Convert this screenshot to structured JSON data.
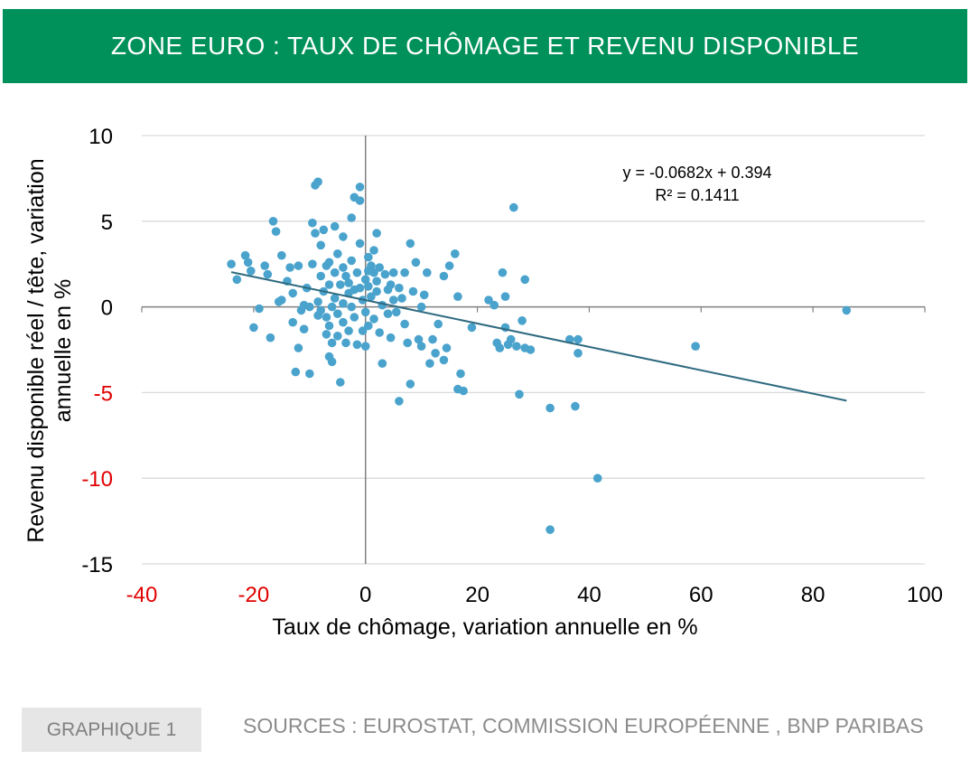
{
  "header": {
    "title": "ZONE EURO : TAUX DE CHÔMAGE ET REVENU DISPONIBLE"
  },
  "footer": {
    "badge": "GRAPHIQUE 1",
    "sources": "SOURCES : EUROSTAT, COMMISSION EUROPÉENNE , BNP PARIBAS"
  },
  "colors": {
    "banner": "#00915a",
    "points": "#4aa3cc",
    "trendline": "#2e6a80",
    "negative_tick": "#e00000",
    "grid": "#d9d9d9",
    "axis": "#808080"
  },
  "chart_data": {
    "type": "scatter",
    "title": "",
    "xlabel": "Taux de chômage, variation annuelle en %",
    "ylabel": "Revenu disponible réel / tête, variation annuelle en %",
    "xlim": [
      -40,
      100
    ],
    "ylim": [
      -15,
      10
    ],
    "x_ticks": [
      "-40",
      "-20",
      "0",
      "20",
      "40",
      "60",
      "80",
      "100"
    ],
    "y_ticks": [
      "10",
      "5",
      "0",
      "-5",
      "-10",
      "-15"
    ],
    "grid": "horizontal",
    "legend": "none",
    "trendline": {
      "equation": "y = -0.0682x + 0.394",
      "r2": "R² = 0.1411",
      "slope": -0.0682,
      "intercept": 0.394,
      "x_range": [
        -24,
        86
      ]
    },
    "points": [
      [
        -24,
        2.5
      ],
      [
        -23,
        1.6
      ],
      [
        -21.5,
        3.0
      ],
      [
        -21,
        2.6
      ],
      [
        -20.5,
        2.1
      ],
      [
        -20,
        -1.2
      ],
      [
        -19,
        -0.1
      ],
      [
        -18,
        2.4
      ],
      [
        -17.5,
        1.9
      ],
      [
        -17,
        -1.8
      ],
      [
        -16.5,
        5.0
      ],
      [
        -16,
        4.4
      ],
      [
        -15.5,
        0.3
      ],
      [
        -15,
        3.0
      ],
      [
        -15,
        0.4
      ],
      [
        -14,
        1.5
      ],
      [
        -13.5,
        2.3
      ],
      [
        -13,
        0.8
      ],
      [
        -13,
        -0.9
      ],
      [
        -12.5,
        -3.8
      ],
      [
        -12,
        2.4
      ],
      [
        -12,
        -2.4
      ],
      [
        -11.5,
        -0.2
      ],
      [
        -11,
        0.1
      ],
      [
        -11,
        -1.3
      ],
      [
        -10.5,
        1.1
      ],
      [
        -10,
        0.0
      ],
      [
        -10,
        -3.9
      ],
      [
        -9.5,
        4.9
      ],
      [
        -9.5,
        2.5
      ],
      [
        -9,
        4.3
      ],
      [
        -9,
        7.1
      ],
      [
        -8.5,
        7.3
      ],
      [
        -8.5,
        0.3
      ],
      [
        -8.5,
        -0.5
      ],
      [
        -8,
        3.6
      ],
      [
        -8,
        1.8
      ],
      [
        -8,
        -0.2
      ],
      [
        -7.5,
        4.5
      ],
      [
        -7.5,
        0.9
      ],
      [
        -7,
        2.4
      ],
      [
        -7,
        -0.6
      ],
      [
        -7,
        -1.6
      ],
      [
        -6.5,
        2.6
      ],
      [
        -6.5,
        1.3
      ],
      [
        -6.5,
        -1.1
      ],
      [
        -6.5,
        -2.9
      ],
      [
        -6,
        0.0
      ],
      [
        -6,
        -2.1
      ],
      [
        -6,
        -3.2
      ],
      [
        -5.5,
        4.7
      ],
      [
        -5.5,
        2.0
      ],
      [
        -5.5,
        0.5
      ],
      [
        -5,
        -0.4
      ],
      [
        -5,
        -1.7
      ],
      [
        -5,
        3.1
      ],
      [
        -4.5,
        1.3
      ],
      [
        -4.5,
        -4.4
      ],
      [
        -4,
        4.1
      ],
      [
        -4,
        2.3
      ],
      [
        -4,
        0.2
      ],
      [
        -4,
        -0.9
      ],
      [
        -3.5,
        1.8
      ],
      [
        -3.5,
        -2.1
      ],
      [
        -3,
        0.8
      ],
      [
        -3,
        1.4
      ],
      [
        -3,
        -1.4
      ],
      [
        -2.5,
        5.2
      ],
      [
        -2.5,
        2.7
      ],
      [
        -2.5,
        0.0
      ],
      [
        -2,
        6.4
      ],
      [
        -2,
        1.0
      ],
      [
        -2,
        -0.6
      ],
      [
        -1.5,
        -2.2
      ],
      [
        -1.5,
        2.0
      ],
      [
        -1,
        6.2
      ],
      [
        -1,
        7.0
      ],
      [
        -1,
        3.7
      ],
      [
        -1,
        1.1
      ],
      [
        -0.5,
        0.4
      ],
      [
        -0.5,
        -1.4
      ],
      [
        0,
        1.6
      ],
      [
        0,
        -0.3
      ],
      [
        0,
        -2.3
      ],
      [
        0.5,
        2.9
      ],
      [
        0.5,
        2.1
      ],
      [
        0.5,
        1.2
      ],
      [
        0.5,
        -1.1
      ],
      [
        1,
        2.4
      ],
      [
        1,
        0.6
      ],
      [
        1.5,
        3.3
      ],
      [
        1.5,
        2.0
      ],
      [
        1.5,
        -0.7
      ],
      [
        2,
        4.3
      ],
      [
        2,
        1.5
      ],
      [
        2,
        0.9
      ],
      [
        2.5,
        -1.5
      ],
      [
        2.5,
        2.3
      ],
      [
        3,
        -3.3
      ],
      [
        3,
        0.1
      ],
      [
        3.5,
        1.9
      ],
      [
        4,
        1.0
      ],
      [
        4,
        -0.4
      ],
      [
        4.5,
        1.3
      ],
      [
        4.5,
        -1.8
      ],
      [
        5,
        0.4
      ],
      [
        5,
        2.0
      ],
      [
        5.5,
        -0.3
      ],
      [
        6,
        1.1
      ],
      [
        6,
        -5.5
      ],
      [
        6.5,
        0.5
      ],
      [
        7,
        2.0
      ],
      [
        7,
        -1.0
      ],
      [
        7.5,
        -2.1
      ],
      [
        8,
        3.7
      ],
      [
        8,
        -4.5
      ],
      [
        8.5,
        0.9
      ],
      [
        9,
        2.6
      ],
      [
        9.5,
        -1.9
      ],
      [
        10,
        -2.3
      ],
      [
        10,
        0.0
      ],
      [
        10.5,
        0.7
      ],
      [
        11,
        2.0
      ],
      [
        11.5,
        -3.3
      ],
      [
        12,
        -1.9
      ],
      [
        12.5,
        -2.7
      ],
      [
        13,
        -1.0
      ],
      [
        14,
        1.8
      ],
      [
        14,
        -3.1
      ],
      [
        14.5,
        -2.4
      ],
      [
        15,
        2.4
      ],
      [
        16,
        3.1
      ],
      [
        16.5,
        0.6
      ],
      [
        16.5,
        -4.8
      ],
      [
        17,
        -3.9
      ],
      [
        17.5,
        -4.9
      ],
      [
        19,
        -1.2
      ],
      [
        22,
        0.4
      ],
      [
        23,
        0.1
      ],
      [
        23.5,
        -2.1
      ],
      [
        24,
        -2.4
      ],
      [
        24.5,
        2.0
      ],
      [
        25,
        0.6
      ],
      [
        25,
        -1.2
      ],
      [
        25.5,
        -2.2
      ],
      [
        26,
        -1.9
      ],
      [
        26.5,
        5.8
      ],
      [
        27,
        -2.3
      ],
      [
        27.5,
        -5.1
      ],
      [
        28,
        -0.8
      ],
      [
        28.5,
        1.6
      ],
      [
        28.5,
        -2.4
      ],
      [
        29.5,
        -2.5
      ],
      [
        33,
        -5.9
      ],
      [
        33,
        -13.0
      ],
      [
        36.5,
        -1.9
      ],
      [
        37.5,
        -5.8
      ],
      [
        38,
        -2.7
      ],
      [
        38,
        -1.9
      ],
      [
        41.5,
        -10.0
      ],
      [
        59,
        -2.3
      ],
      [
        86,
        -0.2
      ]
    ]
  }
}
